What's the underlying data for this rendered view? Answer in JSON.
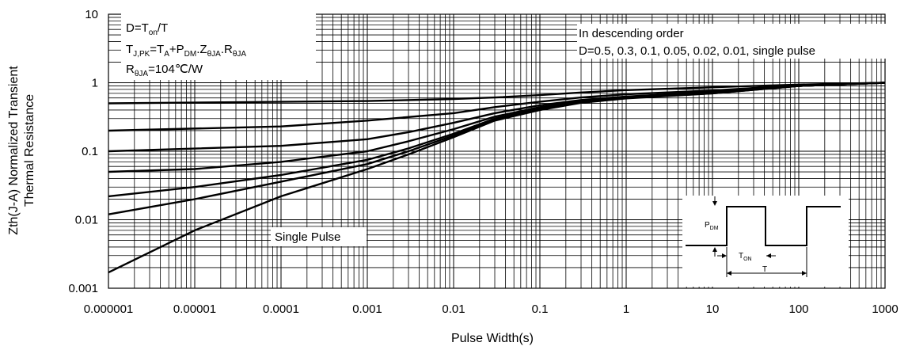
{
  "chart_data": {
    "type": "line",
    "title": "",
    "xlabel": "Pulse Width(s)",
    "ylabel_line1": "Zth(J-A) Normalized Transient",
    "ylabel_line2": "Thermal Resistance",
    "x_scale": "log",
    "y_scale": "log",
    "xlim": [
      1e-06,
      1000
    ],
    "ylim": [
      0.001,
      10
    ],
    "x_ticks": [
      {
        "value": 1e-06,
        "label": "0.000001"
      },
      {
        "value": 1e-05,
        "label": "0.00001"
      },
      {
        "value": 0.0001,
        "label": "0.0001"
      },
      {
        "value": 0.001,
        "label": "0.001"
      },
      {
        "value": 0.01,
        "label": "0.01"
      },
      {
        "value": 0.1,
        "label": "0.1"
      },
      {
        "value": 1,
        "label": "1"
      },
      {
        "value": 10,
        "label": "10"
      },
      {
        "value": 100,
        "label": "100"
      },
      {
        "value": 1000,
        "label": "1000"
      }
    ],
    "y_ticks": [
      {
        "value": 0.001,
        "label": "0.001"
      },
      {
        "value": 0.01,
        "label": "0.01"
      },
      {
        "value": 0.1,
        "label": "0.1"
      },
      {
        "value": 1,
        "label": "1"
      },
      {
        "value": 10,
        "label": "10"
      }
    ],
    "grid": true,
    "series": [
      {
        "x": [
          1e-06,
          0.001,
          0.01,
          0.03,
          0.1,
          0.3,
          1,
          10,
          100,
          1000
        ],
        "y": [
          0.5,
          0.54,
          0.58,
          0.61,
          0.66,
          0.72,
          0.78,
          0.86,
          0.94,
          1.0
        ]
      },
      {
        "x": [
          1e-06,
          0.0001,
          0.001,
          0.01,
          0.03,
          0.1,
          0.3,
          1,
          10,
          100,
          1000
        ],
        "y": [
          0.2,
          0.23,
          0.28,
          0.36,
          0.44,
          0.53,
          0.61,
          0.68,
          0.77,
          0.92,
          1.0
        ]
      },
      {
        "x": [
          1e-06,
          0.0001,
          0.001,
          0.003,
          0.01,
          0.03,
          0.1,
          0.3,
          1,
          10,
          100,
          1000
        ],
        "y": [
          0.1,
          0.12,
          0.15,
          0.19,
          0.26,
          0.36,
          0.47,
          0.56,
          0.63,
          0.74,
          0.9,
          1.0
        ]
      },
      {
        "x": [
          1e-06,
          1e-05,
          0.0001,
          0.001,
          0.003,
          0.01,
          0.03,
          0.1,
          0.3,
          1,
          10,
          100,
          1000
        ],
        "y": [
          0.05,
          0.055,
          0.07,
          0.1,
          0.14,
          0.21,
          0.32,
          0.44,
          0.54,
          0.61,
          0.72,
          0.9,
          1.0
        ]
      },
      {
        "x": [
          1e-06,
          1e-05,
          0.0001,
          0.001,
          0.003,
          0.01,
          0.03,
          0.1,
          0.3,
          1,
          10,
          100,
          1000
        ],
        "y": [
          0.022,
          0.03,
          0.045,
          0.075,
          0.11,
          0.18,
          0.3,
          0.42,
          0.53,
          0.6,
          0.71,
          0.9,
          1.0
        ]
      },
      {
        "x": [
          1e-06,
          1e-05,
          0.0001,
          0.001,
          0.003,
          0.01,
          0.03,
          0.1,
          0.3,
          1,
          10,
          100,
          1000
        ],
        "y": [
          0.012,
          0.02,
          0.036,
          0.065,
          0.1,
          0.17,
          0.29,
          0.41,
          0.52,
          0.6,
          0.7,
          0.9,
          1.0
        ]
      },
      {
        "x": [
          1e-06,
          1e-05,
          0.0001,
          0.001,
          0.003,
          0.01,
          0.03,
          0.1,
          0.3,
          1,
          10,
          100,
          1000
        ],
        "y": [
          0.0017,
          0.007,
          0.022,
          0.055,
          0.09,
          0.16,
          0.28,
          0.4,
          0.51,
          0.59,
          0.7,
          0.9,
          1.0
        ]
      }
    ],
    "annotations": {
      "formula_box": {
        "line1_main": "D=T",
        "line1_sub": "on",
        "line1_tail": "/T",
        "line2_parts": [
          {
            "t": "T",
            "sub": false
          },
          {
            "t": "J,PK",
            "sub": true
          },
          {
            "t": "=T",
            "sub": false
          },
          {
            "t": "A",
            "sub": true
          },
          {
            "t": "+P",
            "sub": false
          },
          {
            "t": "DM",
            "sub": true
          },
          {
            "t": ".Z",
            "sub": false
          },
          {
            "t": "θJA",
            "sub": true
          },
          {
            "t": ".R",
            "sub": false
          },
          {
            "t": "θJA",
            "sub": true
          }
        ],
        "line3_main": "R",
        "line3_sub": "θJA",
        "line3_tail": "=104℃/W"
      },
      "order_box": {
        "line1": "In descending order",
        "line2": "D=0.5, 0.3, 0.1, 0.05, 0.02, 0.01, single pulse"
      },
      "single_pulse_label": "Single Pulse",
      "inset": {
        "pdm_main": "P",
        "pdm_sub": "DM",
        "ton_main": "T",
        "ton_sub": "ON",
        "t_label": "T"
      }
    }
  }
}
